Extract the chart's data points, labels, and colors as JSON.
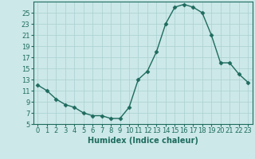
{
  "x": [
    0,
    1,
    2,
    3,
    4,
    5,
    6,
    7,
    8,
    9,
    10,
    11,
    12,
    13,
    14,
    15,
    16,
    17,
    18,
    19,
    20,
    21,
    22,
    23
  ],
  "y": [
    12,
    11,
    9.5,
    8.5,
    8,
    7,
    6.5,
    6.5,
    6,
    6,
    8,
    13,
    14.5,
    18,
    23,
    26,
    26.5,
    26,
    25,
    21,
    16,
    16,
    14,
    12.5
  ],
  "line_color": "#1e6b5e",
  "marker": "D",
  "marker_size": 2.5,
  "bg_color": "#cce8e8",
  "grid_color": "#aad0d0",
  "xlabel": "Humidex (Indice chaleur)",
  "xlim": [
    -0.5,
    23.5
  ],
  "ylim": [
    5,
    27
  ],
  "yticks": [
    5,
    7,
    9,
    11,
    13,
    15,
    17,
    19,
    21,
    23,
    25
  ],
  "xticks": [
    0,
    1,
    2,
    3,
    4,
    5,
    6,
    7,
    8,
    9,
    10,
    11,
    12,
    13,
    14,
    15,
    16,
    17,
    18,
    19,
    20,
    21,
    22,
    23
  ],
  "xtick_labels": [
    "0",
    "1",
    "2",
    "3",
    "4",
    "5",
    "6",
    "7",
    "8",
    "9",
    "10",
    "11",
    "12",
    "13",
    "14",
    "15",
    "16",
    "17",
    "18",
    "19",
    "20",
    "21",
    "22",
    "23"
  ],
  "xlabel_fontsize": 7,
  "tick_fontsize": 6,
  "linewidth": 1.0
}
